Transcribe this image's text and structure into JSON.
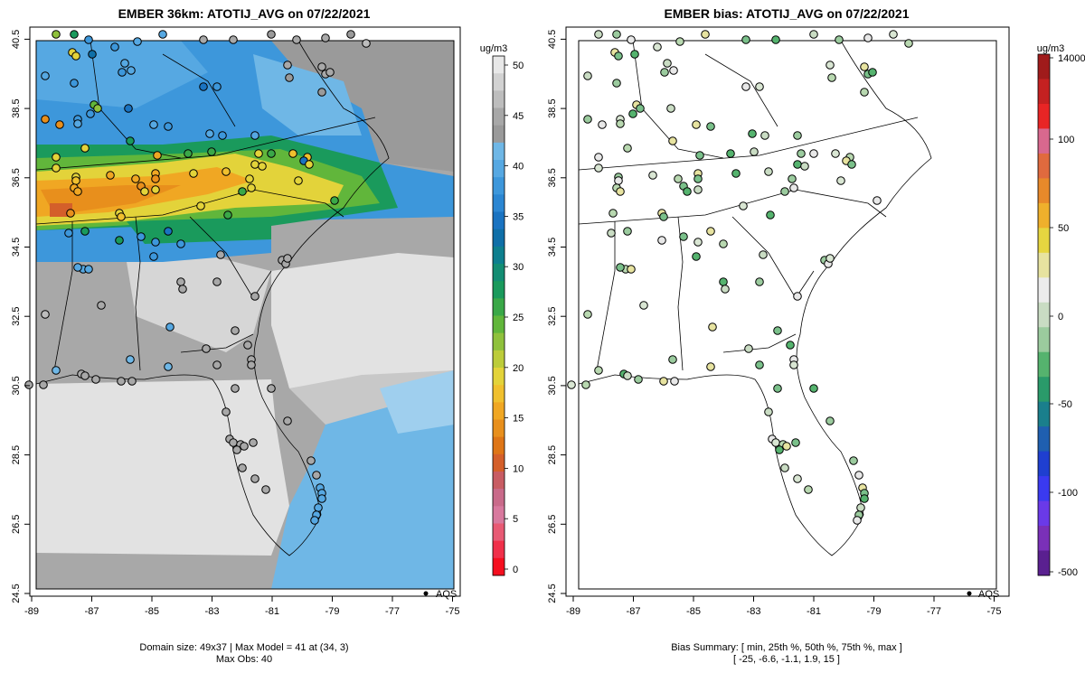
{
  "left_panel": {
    "title": "EMBER 36km: ATOTIJ_AVG on 07/22/2021",
    "xticks": [
      "-89",
      "-87",
      "-85",
      "-83",
      "-81",
      "-79",
      "-77",
      "-75"
    ],
    "yticks": [
      "24.5",
      "26.5",
      "28.5",
      "30.5",
      "32.5",
      "34.5",
      "36.5",
      "38.5",
      "40.5"
    ],
    "legend_label": "AQS",
    "footer_line1": "Domain size: 49x37 | Max Model = 41 at (34, 3)",
    "footer_line2": "Max Obs: 40",
    "colorbar": {
      "unit": "ug/m3",
      "ticks": [
        "0",
        "5",
        "10",
        "15",
        "20",
        "25",
        "30",
        "35",
        "40",
        "45",
        "50"
      ],
      "colors": [
        "#e8e8e8",
        "#d2d2d2",
        "#bdbdbd",
        "#a8a8a8",
        "#9a9a9a",
        "#6fb7e6",
        "#56a8e2",
        "#3d97db",
        "#2b86d2",
        "#1a73c1",
        "#0f6fa8",
        "#0d7f8e",
        "#138d73",
        "#1a9a5c",
        "#3aa848",
        "#61b63b",
        "#8fc13c",
        "#bccc3a",
        "#e3d33a",
        "#f0c02e",
        "#f0a723",
        "#e88f1c",
        "#de7516",
        "#d45f2a",
        "#c85c63",
        "#c96a8a",
        "#d8799e",
        "#e85a74",
        "#f0304a",
        "#f50f1f"
      ]
    }
  },
  "right_panel": {
    "title": "EMBER bias: ATOTIJ_AVG on 07/22/2021",
    "xticks": [
      "-89",
      "-87",
      "-85",
      "-83",
      "-81",
      "-79",
      "-77",
      "-75"
    ],
    "yticks": [
      "24.5",
      "26.5",
      "28.5",
      "30.5",
      "32.5",
      "34.5",
      "36.5",
      "38.5",
      "40.5"
    ],
    "legend_label": "AQS",
    "footer_line1": "Bias Summary: [ min, 25th %, 50th %, 75th %, max ]",
    "footer_line2": "[ -25,   -6.6,   -1.1,   1.9,   15 ]",
    "colorbar": {
      "unit": "ug/m3",
      "ticks": [
        "14000",
        "100",
        "50",
        "0",
        "-50",
        "-100",
        "-500"
      ],
      "colors": [
        "#a01b1b",
        "#c42121",
        "#e82525",
        "#d8688e",
        "#e06a3e",
        "#e8892a",
        "#efb02c",
        "#e6d640",
        "#e7e3a0",
        "#ececec",
        "#c9dcc3",
        "#9bcb9e",
        "#55b36e",
        "#2a9a6a",
        "#1a7f8c",
        "#1f5fb0",
        "#1f3fd0",
        "#3a3af0",
        "#6a3ae8",
        "#7a30b8",
        "#5a2090"
      ]
    }
  }
}
